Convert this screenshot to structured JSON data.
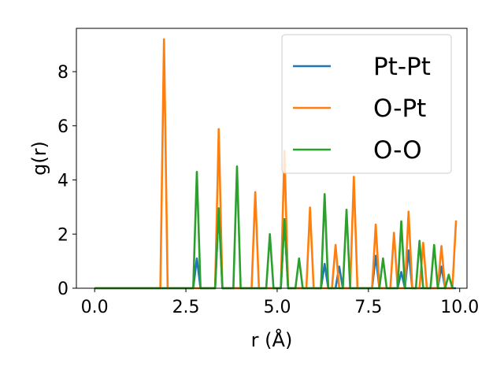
{
  "chart_data": {
    "type": "line",
    "xlabel": "r (Å)",
    "ylabel": "g(r)",
    "xlim": [
      -0.5,
      10.2
    ],
    "ylim": [
      0,
      9.6
    ],
    "xticks": [
      "0.0",
      "2.5",
      "5.0",
      "7.5",
      "10.0"
    ],
    "xtick_values": [
      0.0,
      2.5,
      5.0,
      7.5,
      10.0
    ],
    "yticks": [
      "0",
      "2",
      "4",
      "6",
      "8"
    ],
    "ytick_values": [
      0,
      2,
      4,
      6,
      8
    ],
    "grid": false,
    "legend_position": "top-right",
    "series": [
      {
        "name": "Pt-Pt",
        "color": "#1f77b4",
        "x": [
          0.0,
          2.7,
          2.8,
          2.9,
          3.3,
          3.4,
          3.5,
          5.1,
          5.2,
          5.3,
          6.2,
          6.3,
          6.4,
          6.6,
          6.7,
          6.8,
          7.6,
          7.7,
          7.8,
          8.3,
          8.4,
          8.5,
          8.6,
          8.7,
          9.4,
          9.5,
          9.6,
          9.9
        ],
        "y": [
          0,
          0,
          1.1,
          0,
          0,
          2.95,
          0,
          0,
          2.55,
          0,
          0,
          0.9,
          0,
          0,
          0.8,
          0,
          0,
          1.2,
          0,
          0,
          0.6,
          0,
          1.4,
          0,
          0,
          0.8,
          0,
          0
        ]
      },
      {
        "name": "O-Pt",
        "color": "#ff7f0e",
        "x": [
          0.0,
          1.8,
          1.9,
          2.0,
          3.3,
          3.4,
          3.5,
          4.3,
          4.4,
          4.5,
          5.1,
          5.2,
          5.3,
          5.8,
          5.9,
          6.0,
          6.5,
          6.6,
          6.7,
          7.0,
          7.1,
          7.2,
          7.6,
          7.7,
          7.8,
          8.1,
          8.2,
          8.3,
          8.5,
          8.6,
          8.7,
          8.9,
          9.0,
          9.1,
          9.4,
          9.5,
          9.6,
          9.8,
          9.9
        ],
        "y": [
          0,
          0,
          9.2,
          0,
          0,
          5.88,
          0,
          0,
          3.55,
          0,
          0,
          5.08,
          0,
          0,
          2.98,
          0,
          0,
          1.6,
          0,
          0,
          4.12,
          0,
          0,
          2.35,
          0,
          0,
          2.05,
          0,
          0,
          2.83,
          0,
          0,
          1.68,
          0,
          0,
          1.56,
          0,
          0,
          2.5
        ]
      },
      {
        "name": "O-O",
        "color": "#2ca02c",
        "x": [
          0.0,
          2.7,
          2.8,
          2.9,
          3.3,
          3.4,
          3.5,
          3.8,
          3.9,
          4.0,
          4.7,
          4.8,
          4.9,
          5.1,
          5.2,
          5.3,
          5.5,
          5.6,
          5.7,
          6.2,
          6.3,
          6.4,
          6.8,
          6.9,
          7.0,
          7.8,
          7.9,
          8.0,
          8.3,
          8.4,
          8.5,
          8.8,
          8.9,
          9.0,
          9.2,
          9.3,
          9.4,
          9.6,
          9.7,
          9.8
        ],
        "y": [
          0,
          0,
          4.3,
          0,
          0,
          2.95,
          0,
          0,
          4.5,
          0,
          0,
          2.0,
          0,
          0,
          2.55,
          0,
          0,
          1.1,
          0,
          0,
          3.48,
          0,
          0,
          2.9,
          0,
          0,
          1.1,
          0,
          0,
          2.47,
          0,
          0,
          1.75,
          0,
          0,
          1.6,
          0,
          0,
          0.5,
          0
        ]
      }
    ]
  }
}
